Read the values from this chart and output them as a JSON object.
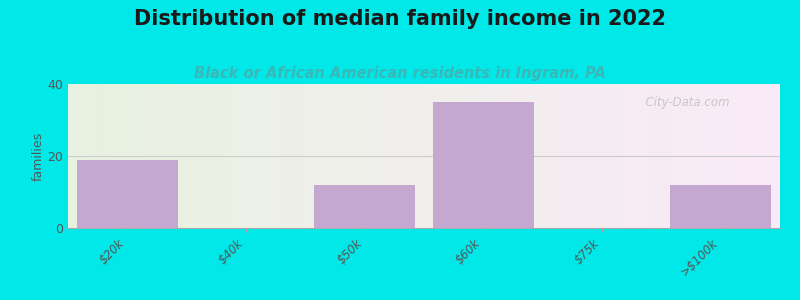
{
  "title": "Distribution of median family income in 2022",
  "subtitle": "Black or African American residents in Ingram, PA",
  "categories": [
    "$20k",
    "$40k",
    "$50k",
    "$60k",
    "$75k",
    ">$100k"
  ],
  "values": [
    19,
    0,
    12,
    35,
    0,
    12
  ],
  "bar_color": "#c4a8d0",
  "ylabel": "families",
  "ylim": [
    0,
    40
  ],
  "yticks": [
    0,
    20,
    40
  ],
  "background_color": "#00e8e8",
  "title_fontsize": 15,
  "subtitle_fontsize": 10.5,
  "subtitle_color": "#3ab8b8",
  "watermark": "  City-Data.com",
  "grid_color": "#e0e0e0",
  "bar_width": 0.85
}
